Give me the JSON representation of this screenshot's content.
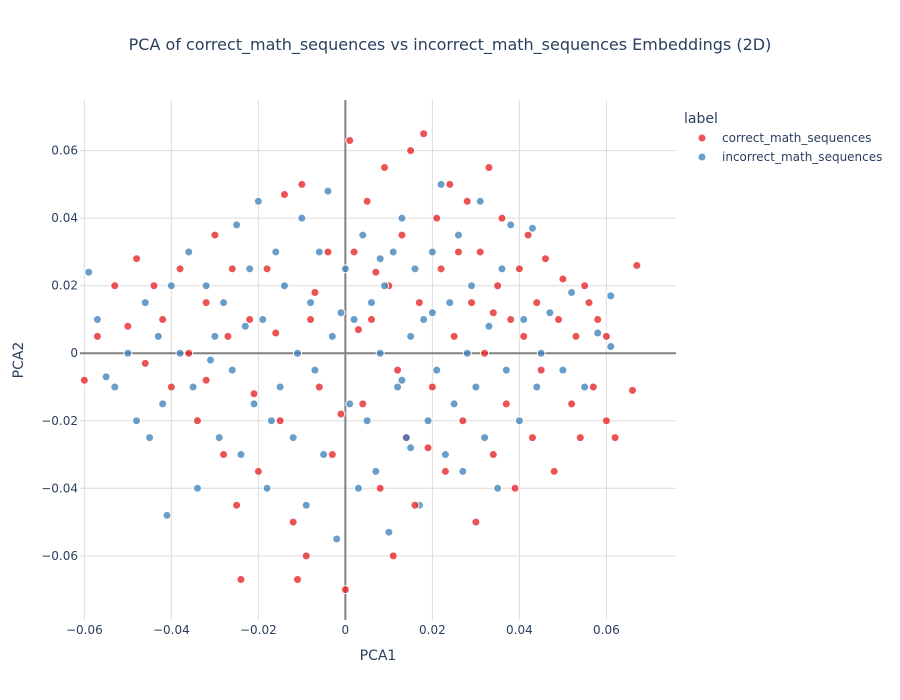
{
  "chart_data": {
    "type": "scatter",
    "title": "PCA of correct_math_sequences vs incorrect_math_sequences Embeddings (2D)",
    "xlabel": "PCA1",
    "ylabel": "PCA2",
    "xlim": [
      -0.061,
      0.076
    ],
    "ylim": [
      -0.079,
      0.075
    ],
    "x_ticks": [
      -0.06,
      -0.04,
      -0.02,
      0,
      0.02,
      0.04,
      0.06
    ],
    "x_tick_labels": [
      "−0.06",
      "−0.04",
      "−0.02",
      "0",
      "0.02",
      "0.04",
      "0.06"
    ],
    "y_ticks": [
      -0.06,
      -0.04,
      -0.02,
      0,
      0.02,
      0.04,
      0.06
    ],
    "y_tick_labels": [
      "−0.06",
      "−0.04",
      "−0.02",
      "0",
      "0.02",
      "0.04",
      "0.06"
    ],
    "grid": true,
    "legend": {
      "title": "label",
      "position": "top-right"
    },
    "series": [
      {
        "name": "correct_math_sequences",
        "color": "#e41a1c",
        "points": [
          [
            -0.06,
            -0.008
          ],
          [
            -0.057,
            0.005
          ],
          [
            -0.053,
            0.02
          ],
          [
            -0.05,
            0.008
          ],
          [
            -0.048,
            0.028
          ],
          [
            -0.046,
            -0.003
          ],
          [
            -0.044,
            0.02
          ],
          [
            -0.042,
            0.01
          ],
          [
            -0.04,
            -0.01
          ],
          [
            -0.038,
            0.025
          ],
          [
            -0.036,
            0.0
          ],
          [
            -0.034,
            -0.02
          ],
          [
            -0.032,
            0.015
          ],
          [
            -0.03,
            0.035
          ],
          [
            -0.028,
            -0.03
          ],
          [
            -0.026,
            0.025
          ],
          [
            -0.025,
            -0.045
          ],
          [
            -0.024,
            -0.067
          ],
          [
            -0.022,
            0.01
          ],
          [
            -0.02,
            -0.035
          ],
          [
            -0.018,
            0.025
          ],
          [
            -0.015,
            -0.02
          ],
          [
            -0.014,
            0.047
          ],
          [
            -0.012,
            -0.05
          ],
          [
            -0.011,
            -0.067
          ],
          [
            -0.01,
            0.05
          ],
          [
            -0.009,
            -0.06
          ],
          [
            -0.008,
            0.01
          ],
          [
            -0.006,
            -0.01
          ],
          [
            -0.004,
            0.03
          ],
          [
            -0.003,
            -0.03
          ],
          [
            0.0,
            -0.07
          ],
          [
            0.001,
            0.063
          ],
          [
            0.002,
            0.03
          ],
          [
            0.004,
            -0.015
          ],
          [
            0.005,
            0.045
          ],
          [
            0.006,
            0.01
          ],
          [
            0.008,
            -0.04
          ],
          [
            0.009,
            0.055
          ],
          [
            0.01,
            0.02
          ],
          [
            0.011,
            -0.06
          ],
          [
            0.012,
            -0.005
          ],
          [
            0.013,
            0.035
          ],
          [
            0.014,
            -0.025
          ],
          [
            0.015,
            0.06
          ],
          [
            0.016,
            -0.045
          ],
          [
            0.017,
            0.015
          ],
          [
            0.018,
            0.065
          ],
          [
            0.02,
            -0.01
          ],
          [
            0.021,
            0.04
          ],
          [
            0.022,
            0.025
          ],
          [
            0.023,
            -0.035
          ],
          [
            0.024,
            0.05
          ],
          [
            0.025,
            0.005
          ],
          [
            0.026,
            0.03
          ],
          [
            0.027,
            -0.02
          ],
          [
            0.028,
            0.045
          ],
          [
            0.029,
            0.015
          ],
          [
            0.03,
            -0.05
          ],
          [
            0.031,
            0.03
          ],
          [
            0.032,
            0.0
          ],
          [
            0.033,
            0.055
          ],
          [
            0.034,
            -0.03
          ],
          [
            0.035,
            0.02
          ],
          [
            0.036,
            0.04
          ],
          [
            0.037,
            -0.015
          ],
          [
            0.038,
            0.01
          ],
          [
            0.039,
            -0.04
          ],
          [
            0.04,
            0.025
          ],
          [
            0.041,
            0.005
          ],
          [
            0.042,
            0.035
          ],
          [
            0.043,
            -0.025
          ],
          [
            0.044,
            0.015
          ],
          [
            0.045,
            -0.005
          ],
          [
            0.046,
            0.028
          ],
          [
            0.048,
            -0.035
          ],
          [
            0.049,
            0.01
          ],
          [
            0.05,
            0.022
          ],
          [
            0.052,
            -0.015
          ],
          [
            0.053,
            0.005
          ],
          [
            0.054,
            -0.025
          ],
          [
            0.055,
            0.02
          ],
          [
            0.057,
            -0.01
          ],
          [
            0.058,
            0.01
          ],
          [
            0.06,
            -0.02
          ],
          [
            0.06,
            0.005
          ],
          [
            0.062,
            -0.025
          ],
          [
            0.066,
            -0.011
          ],
          [
            0.067,
            0.026
          ],
          [
            0.056,
            0.015
          ],
          [
            -0.032,
            -0.008
          ],
          [
            -0.027,
            0.005
          ],
          [
            -0.021,
            -0.012
          ],
          [
            -0.016,
            0.006
          ],
          [
            -0.007,
            0.018
          ],
          [
            -0.001,
            -0.018
          ],
          [
            0.003,
            0.007
          ],
          [
            0.007,
            0.024
          ],
          [
            0.019,
            -0.028
          ],
          [
            0.034,
            0.012
          ]
        ]
      },
      {
        "name": "incorrect_math_sequences",
        "color": "#377eb8",
        "points": [
          [
            -0.059,
            0.024
          ],
          [
            -0.057,
            0.01
          ],
          [
            -0.055,
            -0.007
          ],
          [
            -0.053,
            -0.01
          ],
          [
            -0.05,
            0.0
          ],
          [
            -0.048,
            -0.02
          ],
          [
            -0.046,
            0.015
          ],
          [
            -0.045,
            -0.025
          ],
          [
            -0.043,
            0.005
          ],
          [
            -0.042,
            -0.015
          ],
          [
            -0.041,
            -0.048
          ],
          [
            -0.04,
            0.02
          ],
          [
            -0.038,
            0.0
          ],
          [
            -0.036,
            0.03
          ],
          [
            -0.035,
            -0.01
          ],
          [
            -0.034,
            -0.04
          ],
          [
            -0.032,
            0.02
          ],
          [
            -0.03,
            0.005
          ],
          [
            -0.029,
            -0.025
          ],
          [
            -0.028,
            0.015
          ],
          [
            -0.026,
            -0.005
          ],
          [
            -0.025,
            0.038
          ],
          [
            -0.024,
            -0.03
          ],
          [
            -0.022,
            0.025
          ],
          [
            -0.021,
            -0.015
          ],
          [
            -0.02,
            0.045
          ],
          [
            -0.019,
            0.01
          ],
          [
            -0.018,
            -0.04
          ],
          [
            -0.016,
            0.03
          ],
          [
            -0.015,
            -0.01
          ],
          [
            -0.014,
            0.02
          ],
          [
            -0.012,
            -0.025
          ],
          [
            -0.011,
            0.0
          ],
          [
            -0.01,
            0.04
          ],
          [
            -0.009,
            -0.045
          ],
          [
            -0.008,
            0.015
          ],
          [
            -0.007,
            -0.005
          ],
          [
            -0.006,
            0.03
          ],
          [
            -0.005,
            -0.03
          ],
          [
            -0.004,
            0.048
          ],
          [
            -0.003,
            0.005
          ],
          [
            -0.002,
            -0.055
          ],
          [
            0.0,
            0.025
          ],
          [
            0.001,
            -0.015
          ],
          [
            0.002,
            0.01
          ],
          [
            0.003,
            -0.04
          ],
          [
            0.004,
            0.035
          ],
          [
            0.005,
            -0.02
          ],
          [
            0.006,
            0.015
          ],
          [
            0.007,
            -0.035
          ],
          [
            0.008,
            0.0
          ],
          [
            0.009,
            0.02
          ],
          [
            0.01,
            -0.053
          ],
          [
            0.011,
            0.03
          ],
          [
            0.012,
            -0.01
          ],
          [
            0.013,
            0.04
          ],
          [
            0.014,
            -0.025
          ],
          [
            0.015,
            0.005
          ],
          [
            0.016,
            0.025
          ],
          [
            0.017,
            -0.045
          ],
          [
            0.018,
            0.01
          ],
          [
            0.019,
            -0.02
          ],
          [
            0.02,
            0.03
          ],
          [
            0.021,
            -0.005
          ],
          [
            0.022,
            0.05
          ],
          [
            0.023,
            -0.03
          ],
          [
            0.024,
            0.015
          ],
          [
            0.025,
            -0.015
          ],
          [
            0.026,
            0.035
          ],
          [
            0.027,
            -0.035
          ],
          [
            0.028,
            0.0
          ],
          [
            0.029,
            0.02
          ],
          [
            0.03,
            -0.01
          ],
          [
            0.031,
            0.045
          ],
          [
            0.032,
            -0.025
          ],
          [
            0.033,
            0.008
          ],
          [
            0.035,
            -0.04
          ],
          [
            0.036,
            0.025
          ],
          [
            0.037,
            -0.005
          ],
          [
            0.038,
            0.038
          ],
          [
            0.04,
            -0.02
          ],
          [
            0.041,
            0.01
          ],
          [
            0.043,
            0.037
          ],
          [
            0.044,
            -0.01
          ],
          [
            0.045,
            0.0
          ],
          [
            0.047,
            0.012
          ],
          [
            0.05,
            -0.005
          ],
          [
            0.052,
            0.018
          ],
          [
            0.055,
            -0.01
          ],
          [
            0.058,
            0.006
          ],
          [
            0.061,
            0.002
          ],
          [
            0.061,
            0.017
          ],
          [
            -0.031,
            -0.002
          ],
          [
            -0.023,
            0.008
          ],
          [
            -0.017,
            -0.02
          ],
          [
            -0.001,
            0.012
          ],
          [
            0.008,
            0.028
          ],
          [
            0.013,
            -0.008
          ],
          [
            0.02,
            0.012
          ],
          [
            0.015,
            -0.028
          ]
        ]
      }
    ]
  }
}
